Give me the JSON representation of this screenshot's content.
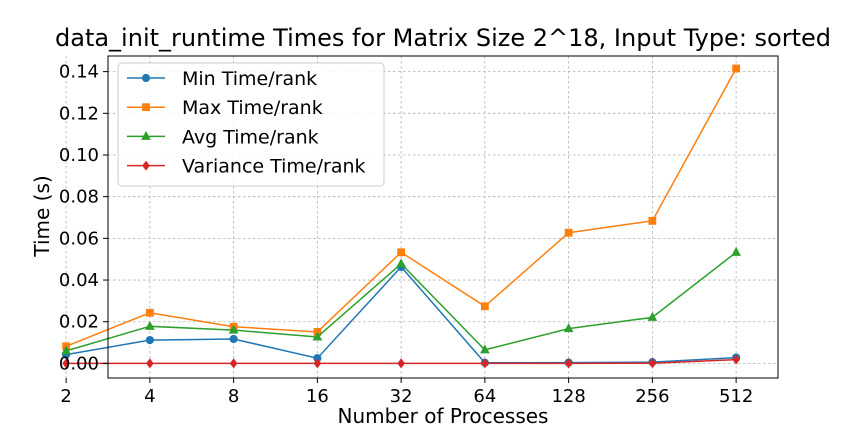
{
  "chart_data": {
    "type": "line",
    "title": "data_init_runtime Times for Matrix Size 2^18, Input Type: sorted",
    "xlabel": "Number of Processes",
    "ylabel": "Time (s)",
    "x_scale": "log2",
    "categories": [
      "2",
      "4",
      "8",
      "16",
      "32",
      "64",
      "128",
      "256",
      "512"
    ],
    "x": [
      2,
      4,
      8,
      16,
      32,
      64,
      128,
      256,
      512
    ],
    "ylim": [
      -0.007,
      0.1475
    ],
    "yticks": [
      0.0,
      0.02,
      0.04,
      0.06,
      0.08,
      0.1,
      0.12,
      0.14
    ],
    "ytick_labels": [
      "0.00",
      "0.02",
      "0.04",
      "0.06",
      "0.08",
      "0.10",
      "0.12",
      "0.14"
    ],
    "grid": true,
    "legend_position": "top-left",
    "series": [
      {
        "name": "Min Time/rank",
        "color": "#1f77b4",
        "marker": "circle",
        "values": [
          0.0042,
          0.0112,
          0.0117,
          0.0025,
          0.0463,
          0.0003,
          0.0004,
          0.0006,
          0.0028
        ]
      },
      {
        "name": "Max Time/rank",
        "color": "#ff7f0e",
        "marker": "square",
        "values": [
          0.0082,
          0.0243,
          0.0176,
          0.0151,
          0.0533,
          0.0274,
          0.0627,
          0.0684,
          0.1415
        ]
      },
      {
        "name": "Avg Time/rank",
        "color": "#2ca02c",
        "marker": "triangle",
        "values": [
          0.006,
          0.0178,
          0.016,
          0.0127,
          0.0478,
          0.0065,
          0.0167,
          0.0221,
          0.0533
        ]
      },
      {
        "name": "Variance Time/rank",
        "color": "#d62728",
        "marker": "diamond",
        "values": [
          0.0,
          0.0,
          0.0,
          0.0,
          0.0,
          0.0,
          0.0,
          0.0001,
          0.0018
        ]
      }
    ]
  }
}
